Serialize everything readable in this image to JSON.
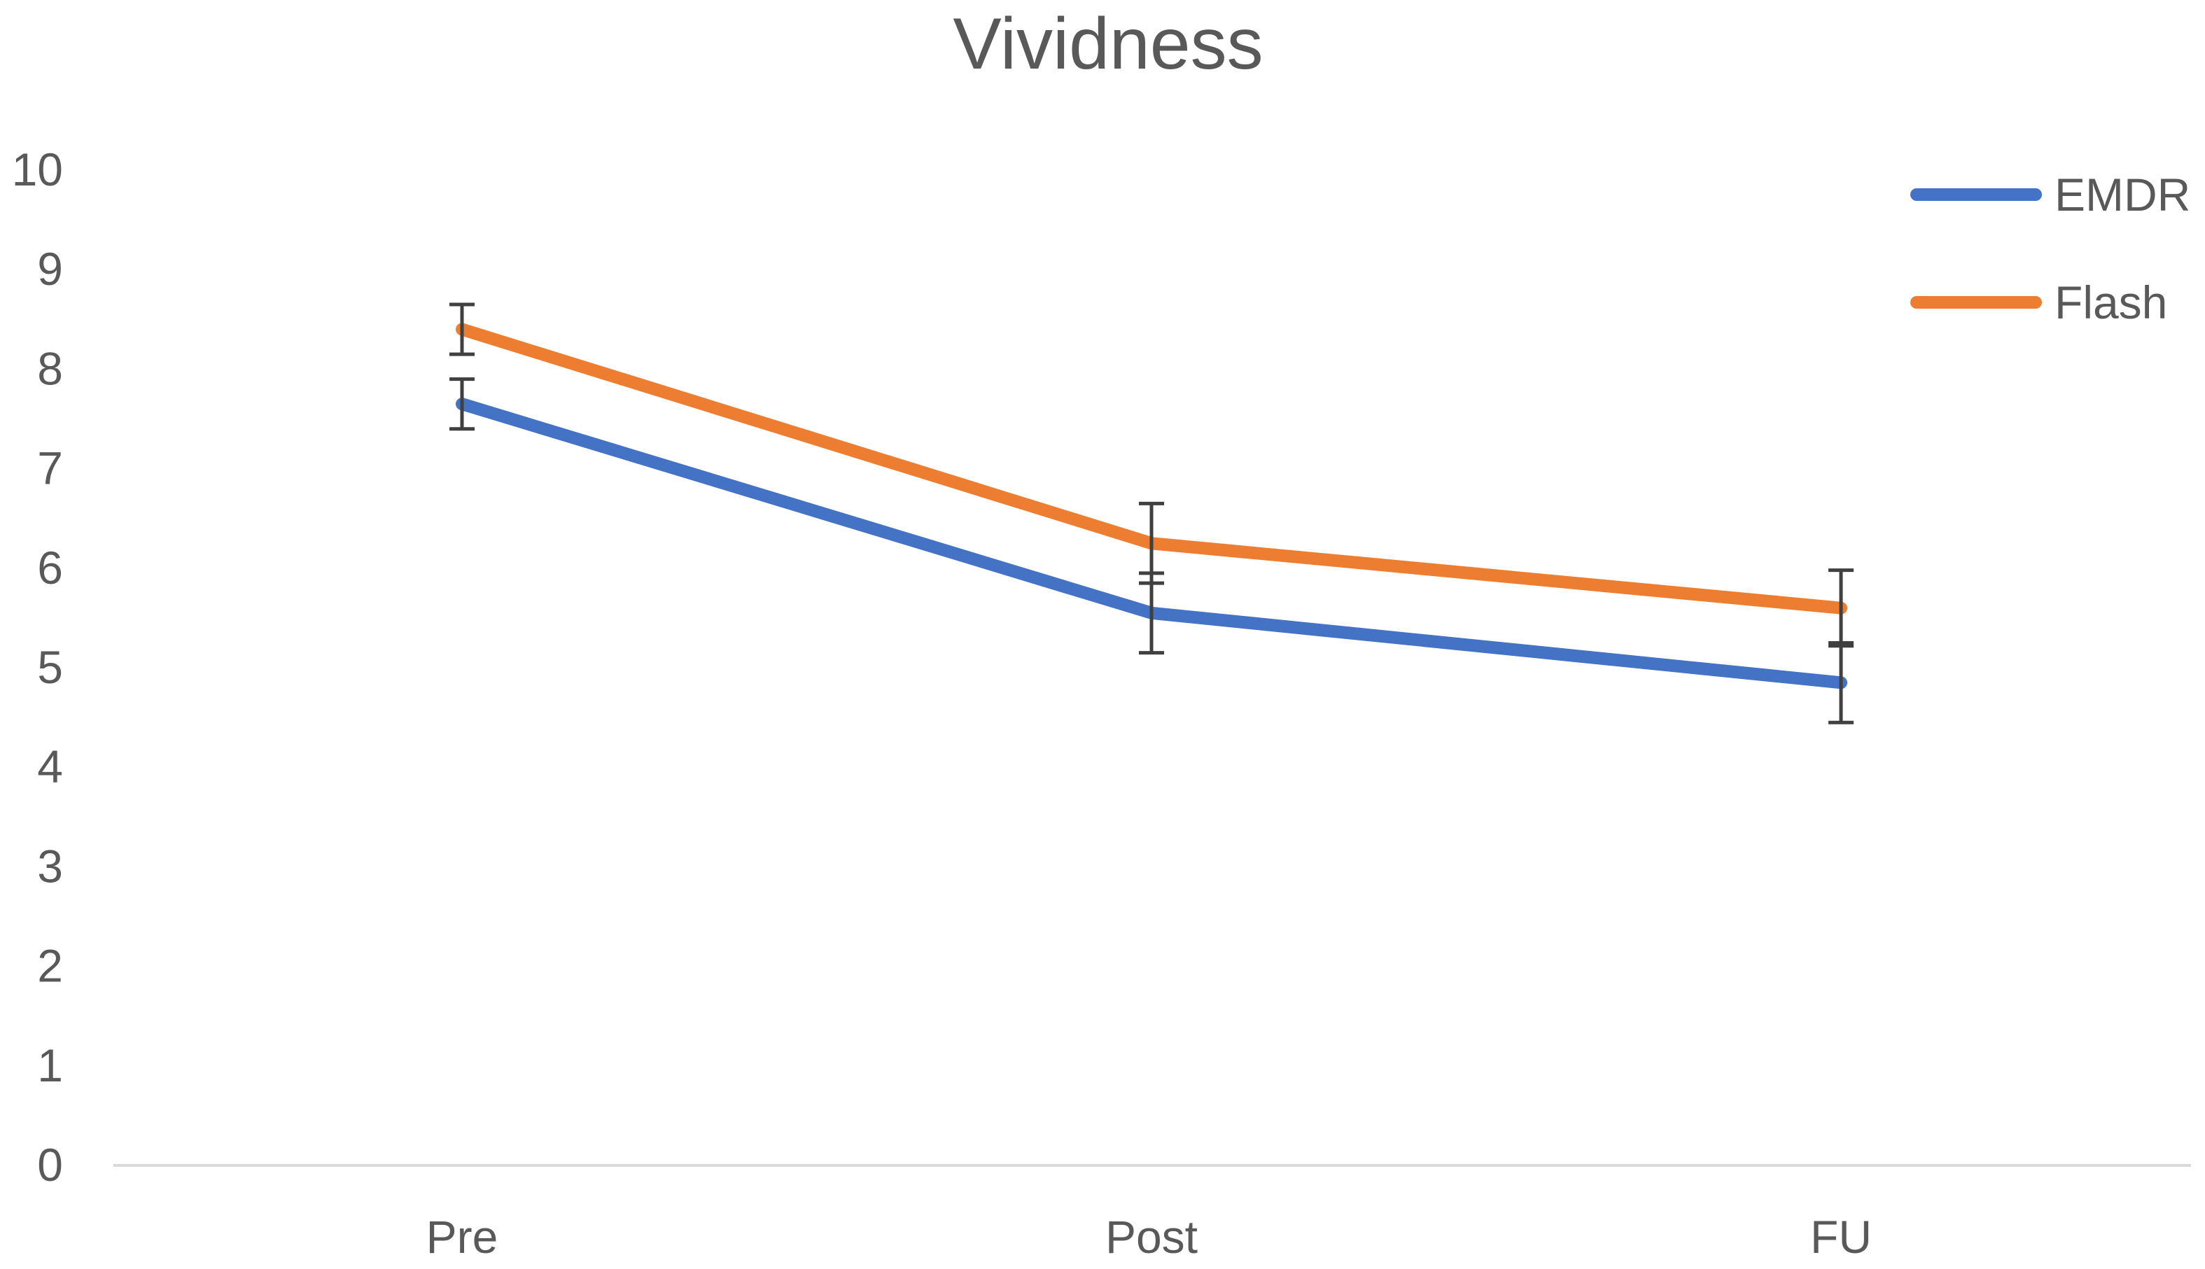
{
  "chart_data": {
    "type": "line",
    "title": "Vividness",
    "xlabel": "",
    "ylabel": "",
    "categories": [
      "Pre",
      "Post",
      "FU"
    ],
    "ylim": [
      0,
      10
    ],
    "yticks": [
      0,
      1,
      2,
      3,
      4,
      5,
      6,
      7,
      8,
      9,
      10
    ],
    "grid": false,
    "legend_position": "top-right",
    "series": [
      {
        "name": "EMDR",
        "color": "#4472C4",
        "values": [
          7.65,
          5.55,
          4.85
        ],
        "error": [
          0.25,
          0.4,
          0.4
        ]
      },
      {
        "name": "Flash",
        "color": "#ED7D31",
        "values": [
          8.4,
          6.25,
          5.6
        ],
        "error": [
          0.25,
          0.4,
          0.38
        ]
      }
    ],
    "error_bar_color": "#404040",
    "axis_color": "#D9D9D9"
  }
}
